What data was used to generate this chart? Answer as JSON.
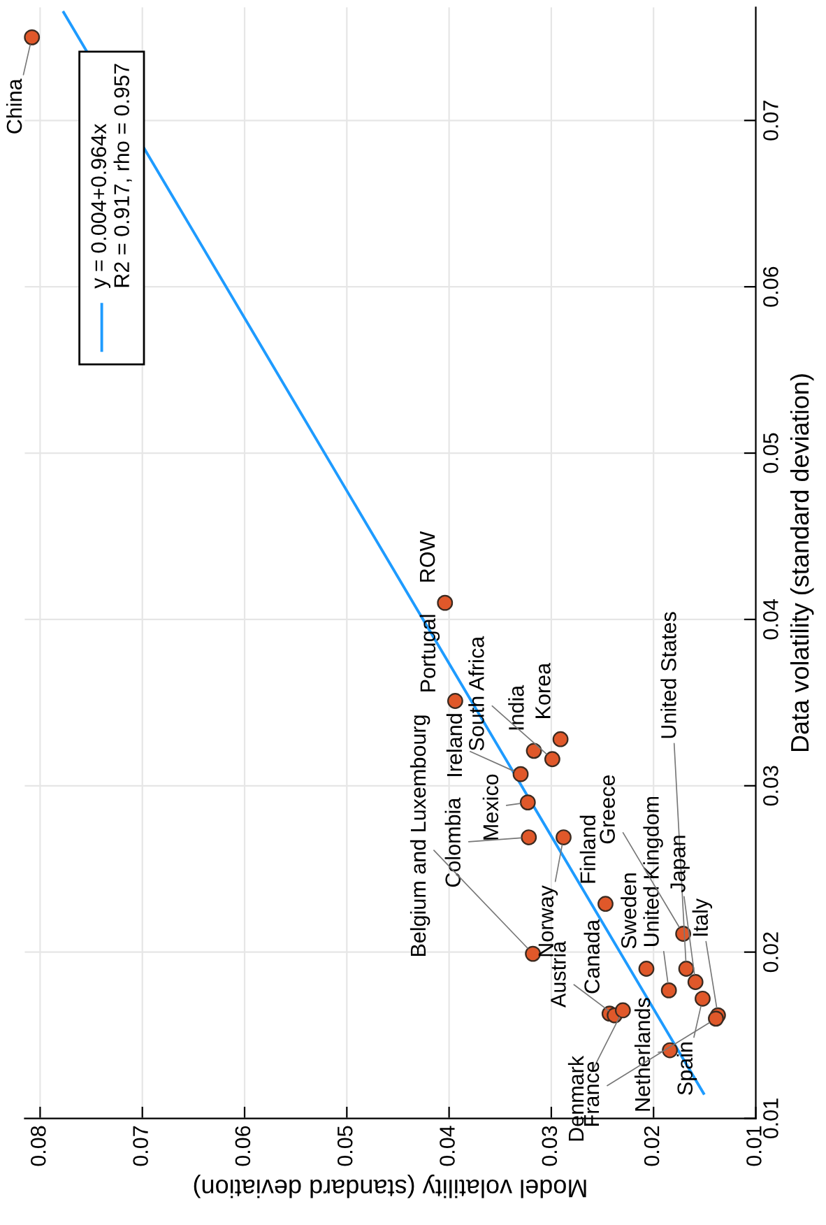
{
  "chart_data": {
    "type": "scatter",
    "xlabel": "Model volatility (standard deviation)",
    "ylabel": "Data volatility (standard deviation)",
    "xlim": [
      0.0815,
      0.01
    ],
    "xticks": [
      0.08,
      0.07,
      0.06,
      0.05,
      0.04,
      0.03,
      0.02,
      0.01
    ],
    "ylim": [
      0.01,
      0.0768
    ],
    "yticks": [
      0.01,
      0.02,
      0.03,
      0.04,
      0.05,
      0.06,
      0.07
    ],
    "grid": true,
    "legend": "top left",
    "marker": "circle",
    "series": [
      {
        "type": "line",
        "name": "y = 0.004+0.964x\nR2 = 0.917, rho = 0.957",
        "color": "#1e9bff",
        "x": [
          0.0151,
          0.0777
        ],
        "values": [
          0.0115,
          0.0765
        ],
        "marker": "none",
        "line_style": "solid"
      },
      {
        "color": "#e0582a",
        "x": [
          0.0808,
          0.0404,
          0.0394,
          0.0291,
          0.0317,
          0.0299,
          0.033,
          0.0323,
          0.0322,
          0.0288,
          0.0247,
          0.0318,
          0.0243,
          0.0238,
          0.023,
          0.0207,
          0.0184,
          0.0185,
          0.0171,
          0.0168,
          0.0159,
          0.0152,
          0.0137,
          0.0139
        ],
        "values": [
          0.075,
          0.041,
          0.0351,
          0.0328,
          0.0321,
          0.0316,
          0.0307,
          0.029,
          0.0269,
          0.0269,
          0.0229,
          0.0199,
          0.0163,
          0.0162,
          0.0165,
          0.019,
          0.0141,
          0.0177,
          0.0211,
          0.019,
          0.0182,
          0.0172,
          0.0162,
          0.016
        ]
      }
    ],
    "annotations": [
      {
        "text": "China",
        "x": 0.0808,
        "y": 0.075
      },
      {
        "text": "ROW",
        "x": 0.0404,
        "y": 0.041
      },
      {
        "text": "Portugal",
        "x": 0.0394,
        "y": 0.0351
      },
      {
        "text": "Korea",
        "x": 0.0291,
        "y": 0.0328
      },
      {
        "text": "India",
        "x": 0.0317,
        "y": 0.0321
      },
      {
        "text": "South Africa",
        "x": 0.0299,
        "y": 0.0316
      },
      {
        "text": "Ireland",
        "x": 0.033,
        "y": 0.0307
      },
      {
        "text": "Mexico",
        "x": 0.0323,
        "y": 0.029
      },
      {
        "text": "Colombia",
        "x": 0.0322,
        "y": 0.0269
      },
      {
        "text": "Norway",
        "x": 0.0288,
        "y": 0.0269
      },
      {
        "text": "Finland",
        "x": 0.0247,
        "y": 0.0229
      },
      {
        "text": "Belgium and Luxembourg",
        "x": 0.0318,
        "y": 0.0199
      },
      {
        "text": "Canada",
        "x": 0.0243,
        "y": 0.0163
      },
      {
        "text": "Austria",
        "x": 0.0238,
        "y": 0.0162
      },
      {
        "text": "Denmark",
        "x": 0.023,
        "y": 0.0165
      },
      {
        "text": "Sweden",
        "x": 0.0207,
        "y": 0.019
      },
      {
        "text": "Netherlands",
        "x": 0.0184,
        "y": 0.0141
      },
      {
        "text": "United Kingdom",
        "x": 0.0185,
        "y": 0.0177
      },
      {
        "text": "Greece",
        "x": 0.0171,
        "y": 0.0211
      },
      {
        "text": "United States",
        "x": 0.0168,
        "y": 0.019
      },
      {
        "text": "Japan",
        "x": 0.0159,
        "y": 0.0182
      },
      {
        "text": "Spain",
        "x": 0.0152,
        "y": 0.0172
      },
      {
        "text": "Italy",
        "x": 0.0137,
        "y": 0.0162
      },
      {
        "text": "France",
        "x": 0.0139,
        "y": 0.016
      }
    ]
  }
}
